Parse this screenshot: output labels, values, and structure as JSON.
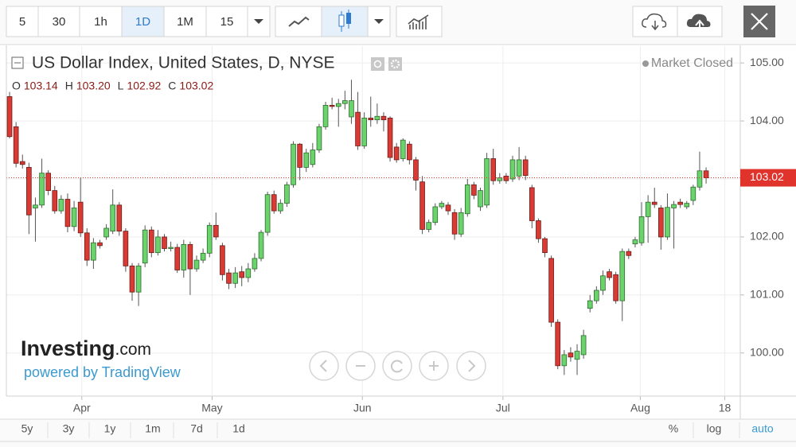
{
  "toolbar": {
    "intervals": [
      "5",
      "30",
      "1h",
      "1D",
      "1M",
      "15"
    ],
    "selected_interval": 3
  },
  "chart_data": {
    "type": "candlestick",
    "title": "US Dollar Index, United States, D, NYSE",
    "status": "Market Closed",
    "ohlc": [
      {
        "key": "O",
        "text": "103.14"
      },
      {
        "key": "H",
        "text": "103.20"
      },
      {
        "key": "L",
        "text": "102.92"
      },
      {
        "key": "C",
        "text": "103.02"
      }
    ],
    "up_color": "#6bd36b",
    "up_border": "#2f6b2f",
    "down_color": "#d93a33",
    "down_border": "#6b1c19",
    "wick_color": "#555555",
    "open": [
      104.42,
      103.9,
      103.3,
      103.2,
      102.5,
      102.55,
      103.1,
      102.8,
      102.45,
      102.65,
      102.18,
      102.6,
      102.07,
      101.6,
      101.9,
      102.0,
      102.1,
      102.55,
      102.1,
      101.5,
      101.05,
      101.55,
      102.12,
      101.73,
      102.0,
      101.8,
      101.82,
      101.43,
      101.87,
      101.45,
      101.6,
      101.72,
      102.2,
      101.85,
      101.38,
      101.2,
      101.4,
      101.3,
      101.45,
      101.63,
      102.08,
      102.73,
      102.45,
      102.58,
      102.9,
      103.6,
      103.2,
      103.25,
      103.5,
      103.9,
      104.27,
      104.25,
      104.3,
      104.07,
      104.15,
      103.57,
      104.05,
      104.02,
      104.08,
      104.05,
      103.55,
      103.35,
      103.6,
      103.33,
      102.95,
      102.13,
      102.25,
      102.52,
      102.55,
      102.42,
      102.05,
      102.4,
      102.9,
      102.52,
      102.55,
      103.35,
      102.97,
      103.05,
      103.0,
      103.05,
      103.33,
      102.85,
      102.28,
      101.97,
      101.63,
      100.53,
      99.78,
      100.0,
      99.89,
      99.97,
      100.77,
      100.9,
      101.08,
      101.4,
      101.35,
      100.9,
      101.75,
      101.88,
      101.9,
      102.35,
      102.6,
      102.5,
      102.0,
      102.5,
      102.6,
      102.52,
      102.63,
      102.86,
      103.14
    ],
    "high": [
      104.5,
      103.98,
      103.42,
      103.28,
      102.68,
      103.35,
      103.15,
      102.88,
      102.72,
      102.75,
      102.62,
      103.02,
      102.15,
      101.98,
      101.95,
      102.22,
      102.82,
      102.6,
      102.15,
      101.55,
      101.55,
      102.2,
      102.18,
      102.12,
      102.05,
      101.92,
      101.88,
      101.95,
      101.92,
      101.68,
      101.8,
      102.25,
      102.42,
      101.9,
      101.45,
      101.48,
      101.5,
      101.55,
      101.72,
      102.12,
      102.78,
      102.8,
      102.65,
      102.95,
      103.65,
      103.62,
      103.52,
      103.62,
      103.95,
      104.33,
      104.4,
      104.38,
      104.52,
      104.71,
      104.5,
      104.15,
      104.42,
      104.3,
      104.15,
      104.08,
      103.62,
      103.7,
      103.65,
      103.38,
      103.05,
      102.3,
      102.58,
      102.62,
      102.6,
      102.48,
      102.5,
      103.0,
      102.95,
      102.85,
      103.45,
      103.52,
      103.1,
      103.1,
      103.4,
      103.55,
      103.4,
      102.9,
      102.32,
      102.0,
      101.68,
      100.58,
      100.05,
      100.1,
      100.15,
      100.4,
      101.0,
      101.15,
      101.42,
      101.45,
      101.4,
      101.8,
      101.8,
      102.0,
      102.6,
      102.72,
      102.85,
      102.55,
      102.75,
      102.62,
      102.66,
      102.62,
      102.9,
      103.47,
      103.2
    ],
    "low": [
      103.7,
      103.2,
      103.18,
      102.05,
      101.92,
      102.5,
      102.72,
      102.4,
      102.4,
      102.08,
      102.1,
      102.0,
      101.5,
      101.45,
      101.8,
      101.95,
      102.05,
      102.02,
      101.4,
      100.9,
      100.81,
      101.48,
      101.65,
      101.68,
      101.75,
      101.75,
      101.38,
      101.3,
      101.0,
      101.4,
      101.55,
      101.65,
      101.95,
      101.25,
      101.1,
      101.12,
      101.15,
      101.22,
      101.4,
      101.58,
      102.02,
      102.4,
      102.4,
      102.52,
      102.85,
      102.98,
      103.12,
      103.2,
      103.45,
      103.85,
      104.2,
      103.9,
      104.2,
      103.95,
      103.5,
      103.52,
      103.9,
      103.95,
      103.82,
      103.3,
      103.28,
      103.3,
      103.25,
      102.8,
      102.05,
      102.08,
      102.2,
      102.48,
      102.38,
      101.95,
      102.0,
      102.35,
      102.65,
      102.45,
      102.5,
      102.9,
      102.92,
      102.92,
      102.95,
      102.98,
      102.98,
      102.15,
      101.9,
      101.65,
      100.45,
      99.72,
      99.62,
      99.85,
      99.62,
      99.9,
      100.7,
      100.85,
      101.0,
      101.25,
      100.85,
      100.55,
      101.62,
      101.82,
      101.85,
      101.9,
      102.5,
      101.78,
      101.95,
      101.8,
      102.5,
      102.48,
      102.55,
      102.8,
      102.92
    ],
    "close": [
      103.73,
      103.27,
      103.25,
      102.38,
      102.55,
      103.1,
      102.8,
      102.45,
      102.65,
      102.18,
      102.5,
      102.07,
      101.6,
      101.9,
      101.85,
      102.15,
      102.55,
      102.1,
      101.5,
      101.05,
      101.5,
      102.12,
      101.73,
      102.0,
      101.8,
      101.82,
      101.43,
      101.87,
      101.45,
      101.6,
      101.72,
      102.2,
      102.0,
      101.35,
      101.2,
      101.38,
      101.3,
      101.45,
      101.63,
      102.08,
      102.73,
      102.45,
      102.58,
      102.9,
      103.6,
      103.2,
      103.45,
      103.5,
      103.9,
      104.27,
      104.25,
      104.3,
      104.35,
      104.35,
      103.57,
      104.05,
      104.02,
      104.08,
      104.02,
      103.37,
      103.33,
      103.67,
      103.33,
      102.98,
      102.13,
      102.25,
      102.52,
      102.58,
      102.45,
      102.05,
      102.42,
      102.9,
      102.72,
      102.8,
      103.35,
      102.97,
      103.02,
      102.97,
      103.33,
      103.33,
      103.06,
      102.28,
      101.97,
      101.73,
      100.53,
      99.78,
      99.97,
      99.93,
      100.03,
      100.3,
      100.9,
      101.08,
      101.33,
      101.3,
      100.9,
      101.75,
      101.68,
      101.95,
      102.35,
      102.6,
      102.56,
      102.0,
      102.51,
      102.56,
      102.56,
      102.58,
      102.86,
      103.14,
      103.02
    ],
    "last_price": {
      "value": 103.02,
      "label": "103.02"
    },
    "last_price_color": "#e0332c",
    "xlim": [
      -0.5,
      113.3
    ],
    "xticks": [
      {
        "value": 11.2,
        "label": "Apr"
      },
      {
        "value": 31.4,
        "label": "May"
      },
      {
        "value": 54.7,
        "label": "Jun"
      },
      {
        "value": 76.5,
        "label": "Jul"
      },
      {
        "value": 97.8,
        "label": "Aug"
      },
      {
        "value": 110.9,
        "label": "18"
      }
    ],
    "ylim": [
      99.27,
      105.29
    ],
    "yticks": [
      {
        "value": 100,
        "label": "100.00"
      },
      {
        "value": 101,
        "label": "101.00"
      },
      {
        "value": 102,
        "label": "102.00"
      },
      {
        "value": 103,
        "label": "103.00"
      },
      {
        "value": 104,
        "label": "104.00"
      },
      {
        "value": 105,
        "label": "105.00"
      }
    ],
    "grid": true
  },
  "branding": {
    "name": "Investing",
    "suffix": ".com",
    "powered": "powered by TradingView"
  },
  "footer": {
    "ranges": [
      "5y",
      "3y",
      "1y",
      "1m",
      "7d",
      "1d"
    ],
    "scales": [
      "%",
      "log",
      "auto"
    ],
    "active_scale": 2
  }
}
